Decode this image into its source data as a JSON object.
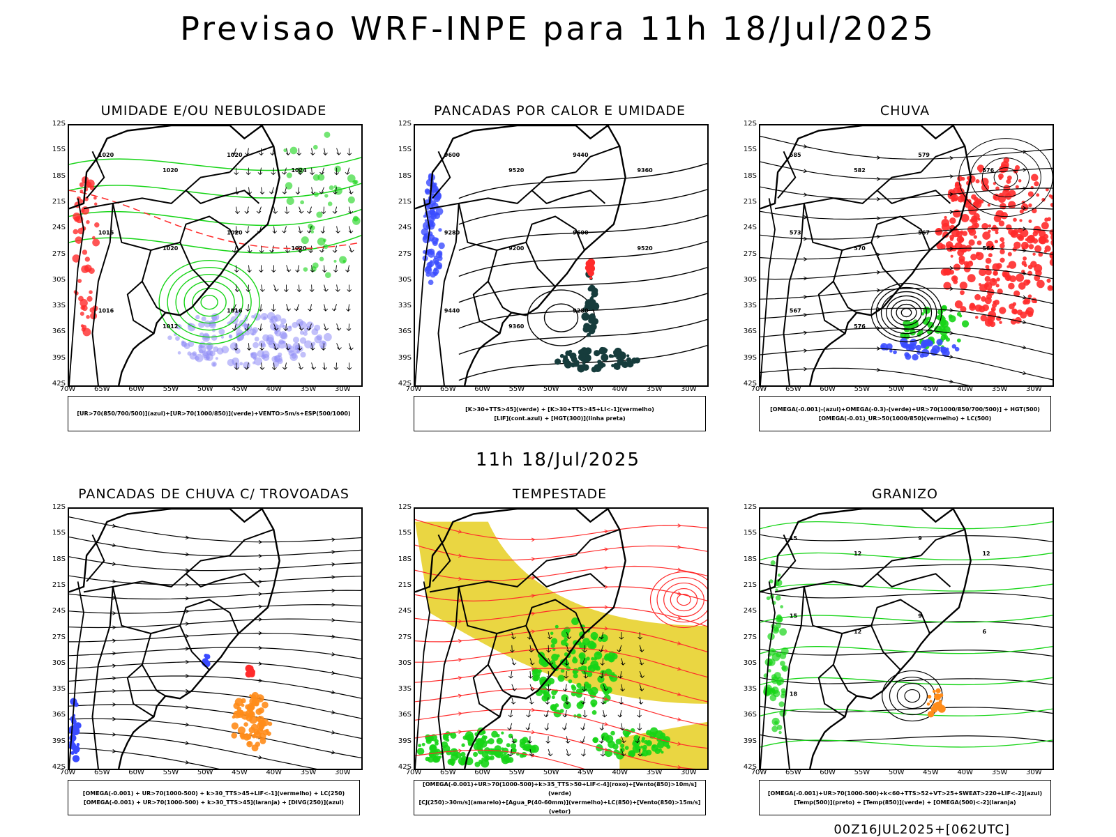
{
  "title": "Previsao WRF-INPE  para 11h 18/Jul/2025",
  "mid_date": "11h 18/Jul/2025",
  "footer": "00Z16JUL2025+[062UTC]",
  "lat_labels": [
    "12S",
    "15S",
    "18S",
    "21S",
    "24S",
    "27S",
    "30S",
    "33S",
    "36S",
    "39S",
    "42S"
  ],
  "lon_labels": [
    "70W",
    "65W",
    "60W",
    "55W",
    "50W",
    "45W",
    "40W",
    "35W",
    "30W"
  ],
  "colors": {
    "red": "#ff2b2b",
    "green": "#16d416",
    "blue": "#3a4bff",
    "yellow": "#e8d12e",
    "dark_teal": "#163c3c",
    "orange": "#ff8c1a",
    "lavender": "#8f8cf5"
  },
  "panels": [
    {
      "id": "umidade",
      "title": "UMIDADE E/OU NEBULOSIDADE",
      "caption": [
        "[UR>70(850/700/500)](azul)+[UR>70(1000/850)](verde)+VENTO>5m/s+ESP(500/1000)"
      ],
      "contour_labels": [
        "1020",
        "1020",
        "1020",
        "1024",
        "1016",
        "1020",
        "1020",
        "1020",
        "1016",
        "1012",
        "1016"
      ]
    },
    {
      "id": "pancadas_calor",
      "title": "PANCADAS POR CALOR E UMIDADE",
      "caption": [
        "[K>30+TTS>45](verde) + [K>30+TTS>45+LI<-1](vermelho)",
        "[LIF](cont.azul) + [HGT(300)](linha preta)"
      ],
      "contour_labels": [
        "9600",
        "9520",
        "9440",
        "9360",
        "9280",
        "9200",
        "9600",
        "9520",
        "9440",
        "9360",
        "9280"
      ]
    },
    {
      "id": "chuva",
      "title": "CHUVA",
      "caption": [
        "[OMEGA(-0.001)-(azul)+OMEGA(-0.3)-(verde)+UR>70(1000/850/700/500)] + HGT(500)",
        "[OMEGA(-0.01)_UR>50(1000/850)(vermelho) + LC(500)"
      ],
      "contour_labels": [
        "585",
        "582",
        "579",
        "576",
        "573",
        "570",
        "567",
        "564",
        "567",
        "576"
      ]
    },
    {
      "id": "trovoadas",
      "title": "PANCADAS DE CHUVA C/ TROVOADAS",
      "caption": [
        "[OMEGA(-0.001) + UR>70(1000-500) + k>30_TTS>45+LIF<-1](vermelho) + LC(250)",
        "[OMEGA(-0.001) + UR>70(1000-500) + k>30_TTS>45](laranja) + [DIVG(250)](azul)"
      ],
      "contour_labels": []
    },
    {
      "id": "tempestade",
      "title": "TEMPESTADE",
      "caption": [
        "[OMEGA(-0.001)+UR>70(1000-500)+k>35_TTS>50+LIF<-4](roxo)+[Vento(850)>10m/s](verde)",
        "[CJ(250)>30m/s](amarelo)+[Agua_P(40-60mm)](vermelho)+LC(850)+[Vento(850)>15m/s](vetor)"
      ],
      "contour_labels": []
    },
    {
      "id": "granizo",
      "title": "GRANIZO",
      "caption": [
        "[OMEGA(-0.001)+UR>70(1000-500)+k<60+TTS>52+VT>25+SWEAT>220+LIF<-2](azul)",
        "[Temp(500)](preto) + [Temp(850)](verde) + [OMEGA(500)<-2](laranja)"
      ],
      "contour_labels": [
        "15",
        "12",
        "9",
        "12",
        "15",
        "12",
        "9",
        "6",
        "18"
      ]
    }
  ]
}
